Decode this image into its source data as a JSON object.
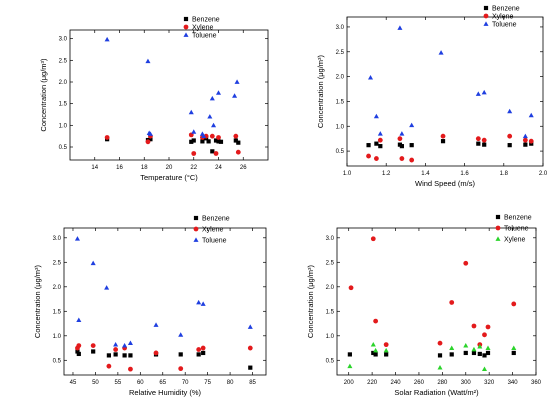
{
  "chart_data": [
    {
      "type": "scatter",
      "xlabel": "Temperature (°C)",
      "ylabel": "Concentration (μg/m³)",
      "xlim": [
        12,
        28
      ],
      "ylim": [
        0.2,
        3.2
      ],
      "x_ticks": [
        14,
        16,
        18,
        20,
        22,
        24,
        26
      ],
      "y_ticks": [
        0.5,
        1.0,
        1.5,
        2.0,
        2.5,
        3.0
      ],
      "legend_position": "top-right",
      "series": [
        {
          "name": "Benzene",
          "marker": "square",
          "color": "#000000",
          "points": [
            [
              15.0,
              0.68
            ],
            [
              18.3,
              0.66
            ],
            [
              18.5,
              0.68
            ],
            [
              21.8,
              0.62
            ],
            [
              22.0,
              0.65
            ],
            [
              22.7,
              0.63
            ],
            [
              23.0,
              0.7
            ],
            [
              23.2,
              0.63
            ],
            [
              23.5,
              0.4
            ],
            [
              23.8,
              0.65
            ],
            [
              24.0,
              0.63
            ],
            [
              24.2,
              0.62
            ],
            [
              25.4,
              0.65
            ],
            [
              25.6,
              0.6
            ]
          ]
        },
        {
          "name": "Xylene",
          "marker": "circle",
          "color": "#e31a1c",
          "points": [
            [
              15.0,
              0.72
            ],
            [
              18.3,
              0.62
            ],
            [
              18.5,
              0.75
            ],
            [
              21.8,
              0.78
            ],
            [
              22.0,
              0.35
            ],
            [
              22.7,
              0.72
            ],
            [
              23.0,
              0.75
            ],
            [
              23.5,
              0.75
            ],
            [
              23.8,
              0.35
            ],
            [
              24.0,
              0.72
            ],
            [
              25.4,
              0.75
            ],
            [
              25.6,
              0.38
            ]
          ]
        },
        {
          "name": "Toluene",
          "marker": "triangle",
          "color": "#1f3fe0",
          "points": [
            [
              15.0,
              2.98
            ],
            [
              18.3,
              2.48
            ],
            [
              18.4,
              0.82
            ],
            [
              18.5,
              0.8
            ],
            [
              21.8,
              1.3
            ],
            [
              22.0,
              0.85
            ],
            [
              22.7,
              0.8
            ],
            [
              22.8,
              0.75
            ],
            [
              23.3,
              1.2
            ],
            [
              23.5,
              1.62
            ],
            [
              23.6,
              1.0
            ],
            [
              24.0,
              1.75
            ],
            [
              25.3,
              1.68
            ],
            [
              25.5,
              2.0
            ]
          ]
        }
      ]
    },
    {
      "type": "scatter",
      "xlabel": "Wind Speed (m/s)",
      "ylabel": "Concentration (μg/m³)",
      "xlim": [
        1.0,
        2.0
      ],
      "ylim": [
        0.2,
        3.2
      ],
      "x_ticks": [
        1.0,
        1.2,
        1.4,
        1.6,
        1.8,
        2.0
      ],
      "y_ticks": [
        0.5,
        1.0,
        1.5,
        2.0,
        2.5,
        3.0
      ],
      "legend_position": "top-right",
      "series": [
        {
          "name": "Benzene",
          "marker": "square",
          "color": "#000000",
          "points": [
            [
              1.11,
              0.62
            ],
            [
              1.15,
              0.65
            ],
            [
              1.17,
              0.6
            ],
            [
              1.27,
              0.63
            ],
            [
              1.28,
              0.6
            ],
            [
              1.33,
              0.62
            ],
            [
              1.49,
              0.7
            ],
            [
              1.67,
              0.65
            ],
            [
              1.7,
              0.63
            ],
            [
              1.83,
              0.62
            ],
            [
              1.91,
              0.63
            ],
            [
              1.94,
              0.65
            ]
          ]
        },
        {
          "name": "Xylene",
          "marker": "circle",
          "color": "#e31a1c",
          "points": [
            [
              1.11,
              0.4
            ],
            [
              1.15,
              0.35
            ],
            [
              1.17,
              0.72
            ],
            [
              1.27,
              0.75
            ],
            [
              1.28,
              0.35
            ],
            [
              1.33,
              0.32
            ],
            [
              1.49,
              0.8
            ],
            [
              1.67,
              0.75
            ],
            [
              1.7,
              0.72
            ],
            [
              1.83,
              0.8
            ],
            [
              1.91,
              0.72
            ],
            [
              1.94,
              0.7
            ]
          ]
        },
        {
          "name": "Toluene",
          "marker": "triangle",
          "color": "#1f3fe0",
          "points": [
            [
              1.12,
              1.98
            ],
            [
              1.15,
              1.2
            ],
            [
              1.17,
              0.85
            ],
            [
              1.27,
              2.98
            ],
            [
              1.28,
              0.85
            ],
            [
              1.33,
              1.02
            ],
            [
              1.48,
              2.48
            ],
            [
              1.67,
              1.65
            ],
            [
              1.7,
              1.68
            ],
            [
              1.83,
              1.3
            ],
            [
              1.91,
              0.8
            ],
            [
              1.94,
              1.22
            ]
          ]
        }
      ]
    },
    {
      "type": "scatter",
      "xlabel": "Relative Humidity (%)",
      "ylabel": "Concentration (μg/m³)",
      "xlim": [
        43,
        88
      ],
      "ylim": [
        0.2,
        3.2
      ],
      "x_ticks": [
        45,
        50,
        55,
        60,
        65,
        70,
        75,
        80,
        85
      ],
      "y_ticks": [
        0.5,
        1.0,
        1.5,
        2.0,
        2.5,
        3.0
      ],
      "legend_position": "top-right",
      "series": [
        {
          "name": "Benzene",
          "marker": "square",
          "color": "#000000",
          "points": [
            [
              46.0,
              0.68
            ],
            [
              46.3,
              0.63
            ],
            [
              49.5,
              0.68
            ],
            [
              53.0,
              0.6
            ],
            [
              54.5,
              0.62
            ],
            [
              56.5,
              0.6
            ],
            [
              57.8,
              0.6
            ],
            [
              63.5,
              0.62
            ],
            [
              69.0,
              0.62
            ],
            [
              73.0,
              0.62
            ],
            [
              74.0,
              0.65
            ],
            [
              84.5,
              0.35
            ]
          ]
        },
        {
          "name": "Xylene",
          "marker": "circle",
          "color": "#e31a1c",
          "points": [
            [
              46.0,
              0.75
            ],
            [
              46.3,
              0.8
            ],
            [
              49.5,
              0.8
            ],
            [
              53.0,
              0.38
            ],
            [
              54.5,
              0.72
            ],
            [
              56.5,
              0.75
            ],
            [
              57.8,
              0.32
            ],
            [
              63.5,
              0.65
            ],
            [
              69.0,
              0.33
            ],
            [
              73.0,
              0.72
            ],
            [
              74.0,
              0.75
            ],
            [
              84.5,
              0.75
            ]
          ]
        },
        {
          "name": "Toluene",
          "marker": "triangle",
          "color": "#1f3fe0",
          "points": [
            [
              46.0,
              2.98
            ],
            [
              46.3,
              1.32
            ],
            [
              49.5,
              2.48
            ],
            [
              52.5,
              1.98
            ],
            [
              54.5,
              0.82
            ],
            [
              56.5,
              0.8
            ],
            [
              57.8,
              0.85
            ],
            [
              63.5,
              1.22
            ],
            [
              69.0,
              1.02
            ],
            [
              73.0,
              1.68
            ],
            [
              74.0,
              1.65
            ],
            [
              84.5,
              1.18
            ]
          ]
        }
      ]
    },
    {
      "type": "scatter",
      "xlabel": "Solar Radiation (Watt/m²)",
      "ylabel": "Concentration (μg/m³)",
      "xlim": [
        190,
        360
      ],
      "ylim": [
        0.2,
        3.2
      ],
      "x_ticks": [
        200,
        220,
        240,
        260,
        280,
        300,
        320,
        340,
        360
      ],
      "y_ticks": [
        0.5,
        1.0,
        1.5,
        2.0,
        2.5,
        3.0
      ],
      "legend_position": "top-right",
      "series": [
        {
          "name": "Benzene",
          "marker": "square",
          "color": "#000000",
          "points": [
            [
              201,
              0.62
            ],
            [
              221,
              0.65
            ],
            [
              223,
              0.62
            ],
            [
              232,
              0.62
            ],
            [
              278,
              0.6
            ],
            [
              288,
              0.62
            ],
            [
              300,
              0.65
            ],
            [
              307,
              0.65
            ],
            [
              312,
              0.63
            ],
            [
              316,
              0.6
            ],
            [
              319,
              0.65
            ],
            [
              341,
              0.65
            ]
          ]
        },
        {
          "name": "Toluene",
          "marker": "circle",
          "color": "#e31a1c",
          "points": [
            [
              202,
              1.98
            ],
            [
              221,
              2.98
            ],
            [
              223,
              1.3
            ],
            [
              232,
              0.82
            ],
            [
              278,
              0.85
            ],
            [
              288,
              1.68
            ],
            [
              300,
              2.48
            ],
            [
              307,
              1.2
            ],
            [
              312,
              0.82
            ],
            [
              316,
              1.02
            ],
            [
              319,
              1.18
            ],
            [
              341,
              1.65
            ]
          ]
        },
        {
          "name": "Xylene",
          "marker": "triangle",
          "color": "#2bd42b",
          "points": [
            [
              201,
              0.38
            ],
            [
              221,
              0.82
            ],
            [
              223,
              0.7
            ],
            [
              232,
              0.7
            ],
            [
              278,
              0.35
            ],
            [
              288,
              0.75
            ],
            [
              300,
              0.8
            ],
            [
              307,
              0.72
            ],
            [
              312,
              0.78
            ],
            [
              316,
              0.32
            ],
            [
              319,
              0.75
            ],
            [
              341,
              0.75
            ]
          ]
        }
      ]
    }
  ]
}
